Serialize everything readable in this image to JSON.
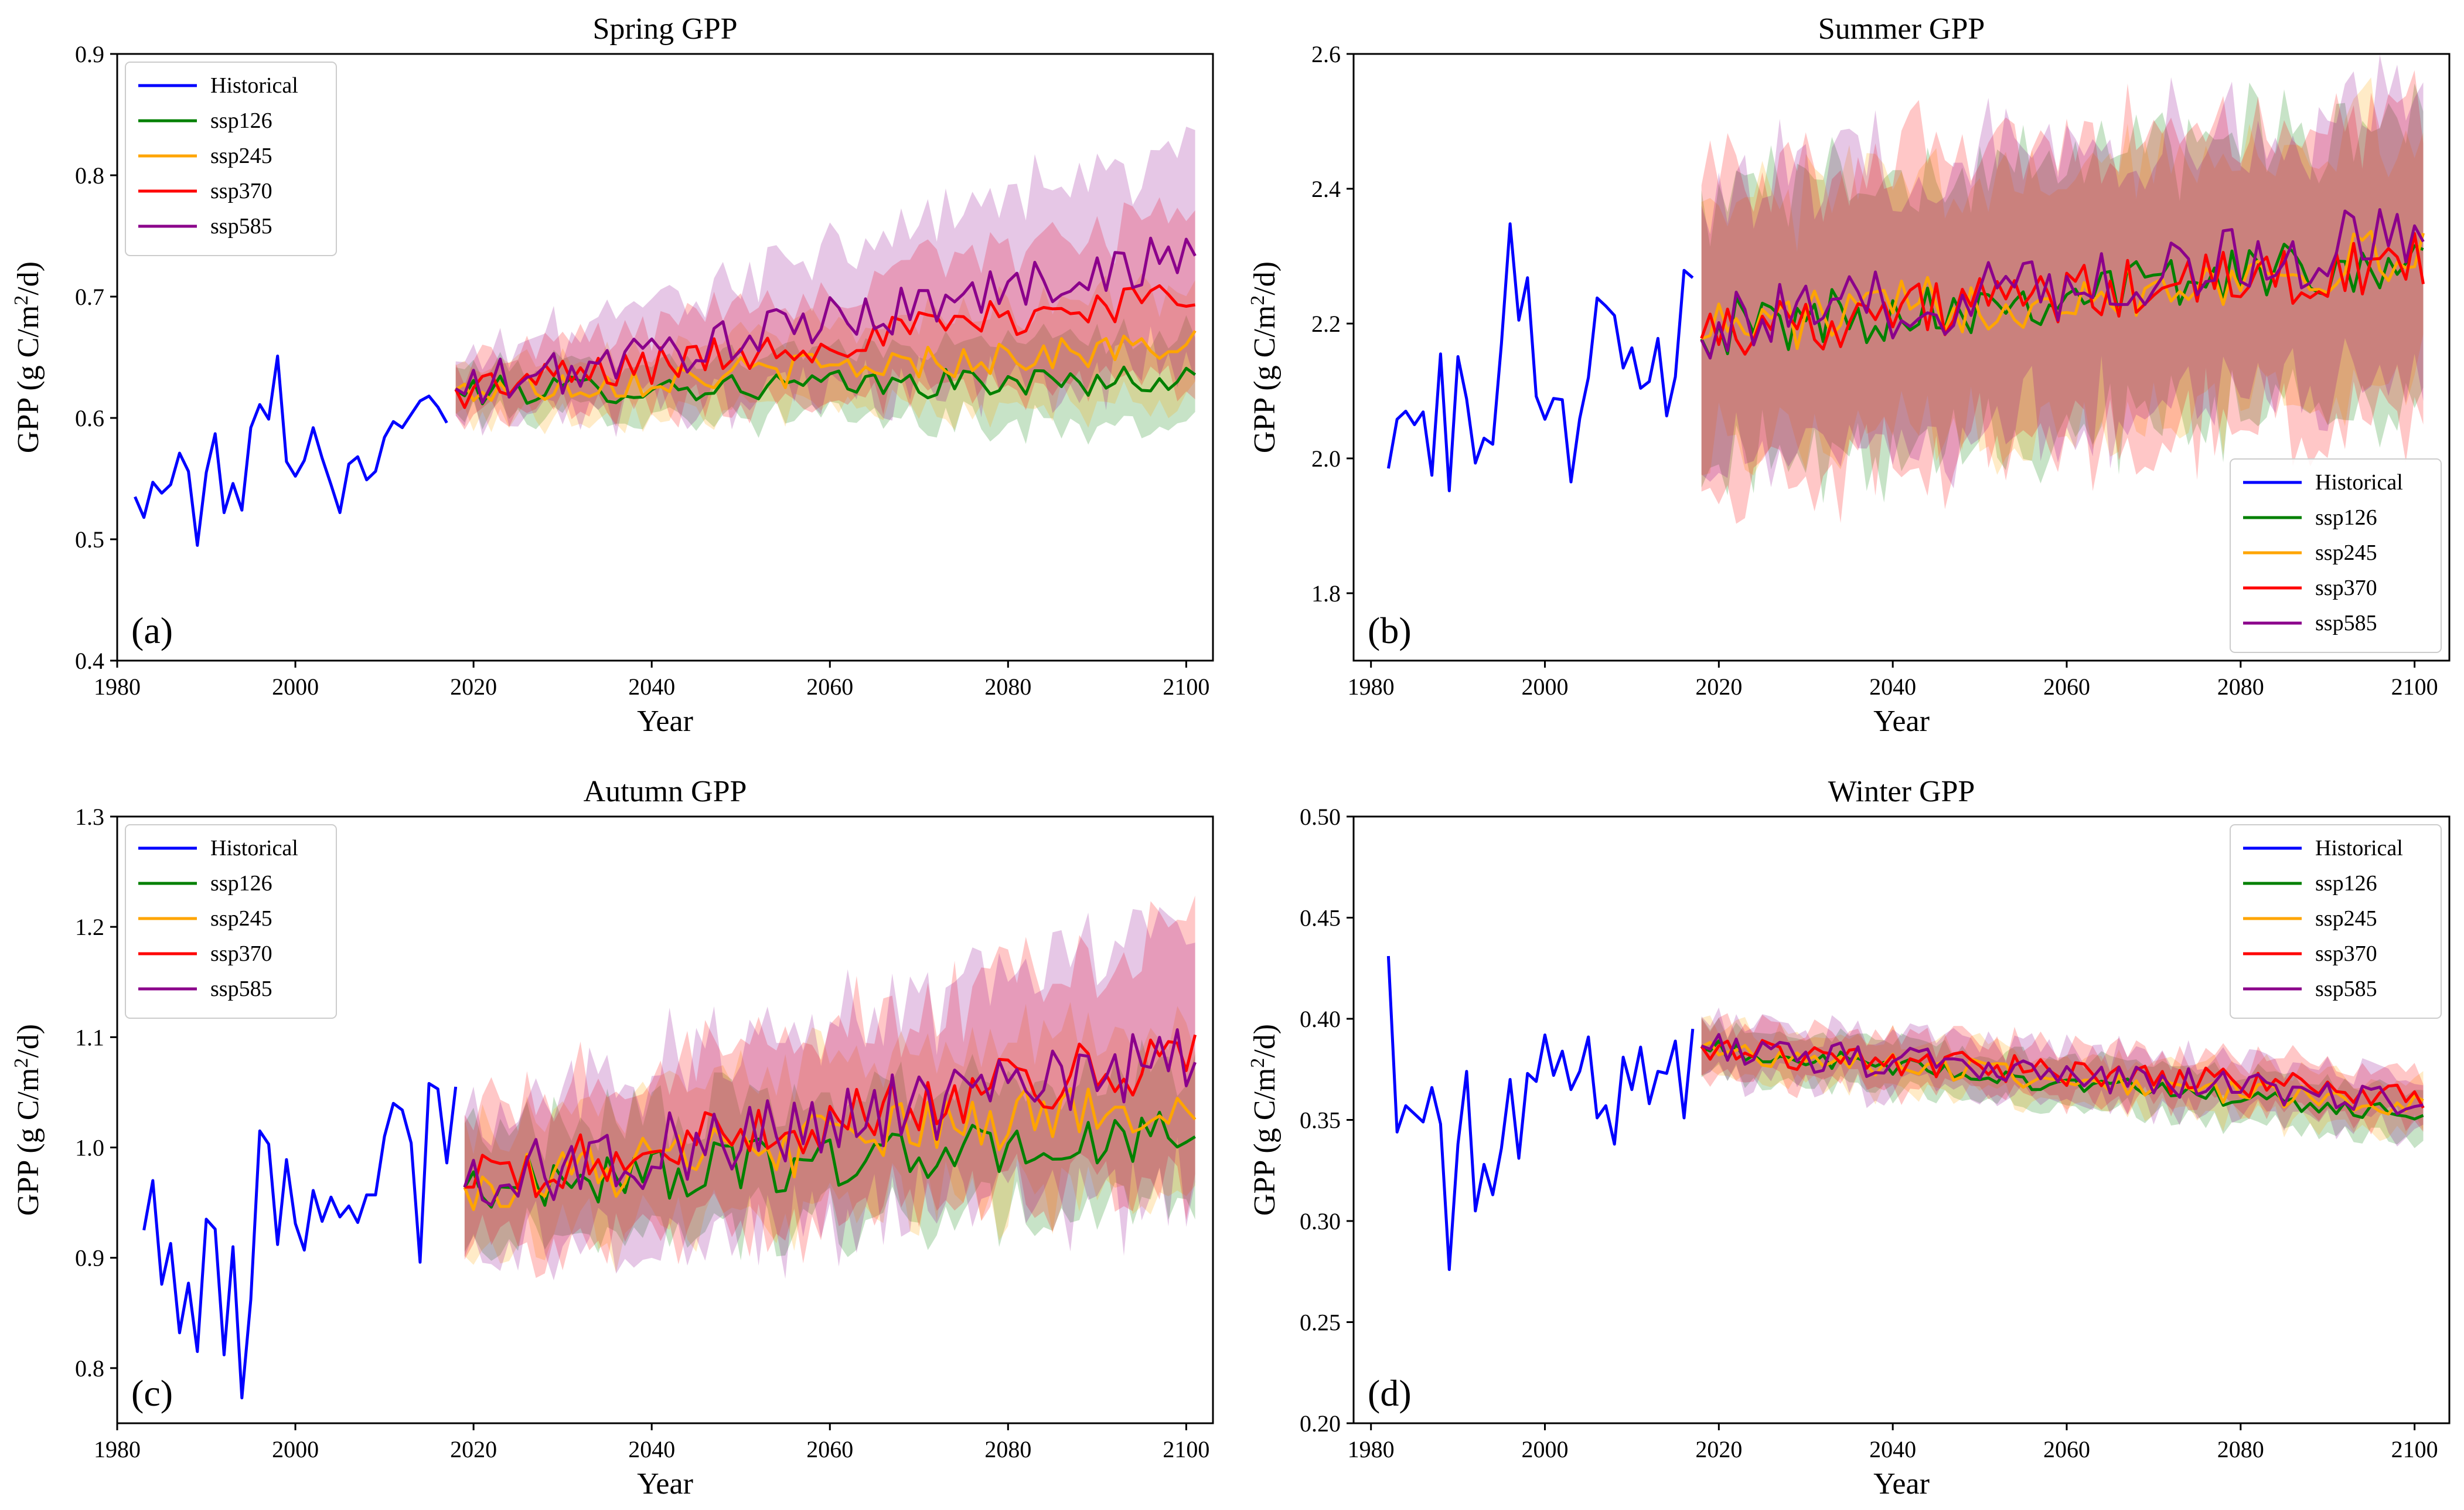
{
  "figure": {
    "series_names": [
      "Historical",
      "ssp126",
      "ssp245",
      "ssp370",
      "ssp585"
    ],
    "colors": {
      "Historical": "#0000ff",
      "ssp126": "#008000",
      "ssp245": "#ffa500",
      "ssp370": "#ff0000",
      "ssp585": "#8b008b"
    }
  },
  "chart_data": [
    {
      "type": "line",
      "title": "Spring GPP",
      "panel_label": "(a)",
      "xlabel": "Year",
      "ylabel": "GPP (g C/m2/d)",
      "xlim": [
        1980,
        2103
      ],
      "ylim": [
        0.4,
        0.9
      ],
      "xticks": [
        1980,
        2000,
        2020,
        2040,
        2060,
        2080,
        2100
      ],
      "yticks": [
        0.4,
        0.5,
        0.6,
        0.7,
        0.8,
        0.9
      ],
      "ytick_labels": [
        "0.4",
        "0.5",
        "0.6",
        "0.7",
        "0.8",
        "0.9"
      ],
      "legend_position": "upper-left",
      "historical": {
        "x_start": 1982,
        "values": [
          0.535,
          0.518,
          0.547,
          0.538,
          0.545,
          0.571,
          0.556,
          0.495,
          0.555,
          0.587,
          0.522,
          0.546,
          0.524,
          0.592,
          0.611,
          0.599,
          0.651,
          0.564,
          0.552,
          0.565,
          0.592,
          0.567,
          0.545,
          0.522,
          0.562,
          0.568,
          0.549,
          0.556,
          0.584,
          0.597,
          0.592,
          0.603,
          0.614,
          0.618,
          0.609,
          0.596
        ]
      },
      "scenarios": [
        {
          "name": "ssp126",
          "trend_end": 0.632,
          "noise": 0.012,
          "band": 0.018,
          "band_growth": 0.02
        },
        {
          "name": "ssp245",
          "trend_end": 0.66,
          "noise": 0.014,
          "band": 0.02,
          "band_growth": 0.025
        },
        {
          "name": "ssp370",
          "trend_end": 0.703,
          "noise": 0.016,
          "band": 0.022,
          "band_growth": 0.045
        },
        {
          "name": "ssp585",
          "trend_end": 0.735,
          "noise": 0.02,
          "band": 0.024,
          "band_growth": 0.07
        }
      ],
      "scenario_start": {
        "year": 2018,
        "value": 0.622
      },
      "scenario_end_year": 2101
    },
    {
      "type": "line",
      "title": "Summer GPP",
      "panel_label": "(b)",
      "xlabel": "Year",
      "ylabel": "GPP (g C/m2/d)",
      "xlim": [
        1978,
        2104
      ],
      "ylim": [
        1.7,
        2.6
      ],
      "xticks": [
        1980,
        2000,
        2020,
        2040,
        2060,
        2080,
        2100
      ],
      "yticks": [
        1.8,
        2.0,
        2.2,
        2.4,
        2.6
      ],
      "ytick_labels": [
        "1.8",
        "2.0",
        "2.2",
        "2.4",
        "2.6"
      ],
      "legend_position": "lower-right",
      "historical": {
        "x_start": 1982,
        "values": [
          1.985,
          2.058,
          2.07,
          2.05,
          2.069,
          1.975,
          2.155,
          1.952,
          2.151,
          2.088,
          1.993,
          2.03,
          2.021,
          2.17,
          2.348,
          2.205,
          2.268,
          2.092,
          2.058,
          2.089,
          2.087,
          1.965,
          2.059,
          2.12,
          2.238,
          2.226,
          2.212,
          2.134,
          2.164,
          2.104,
          2.114,
          2.178,
          2.063,
          2.121,
          2.279,
          2.268
        ]
      },
      "scenarios": [
        {
          "name": "ssp126",
          "trend_end": 2.3,
          "noise": 0.045,
          "band": 0.2,
          "band_growth": 0.0
        },
        {
          "name": "ssp245",
          "trend_end": 2.3,
          "noise": 0.045,
          "band": 0.19,
          "band_growth": 0.0
        },
        {
          "name": "ssp370",
          "trend_end": 2.29,
          "noise": 0.045,
          "band": 0.22,
          "band_growth": 0.0
        },
        {
          "name": "ssp585",
          "trend_end": 2.33,
          "noise": 0.055,
          "band": 0.2,
          "band_growth": 0.0
        }
      ],
      "scenario_start": {
        "year": 2018,
        "value": 2.19
      },
      "scenario_end_year": 2101
    },
    {
      "type": "line",
      "title": "Autumn GPP",
      "panel_label": "(c)",
      "xlabel": "Year",
      "ylabel": "GPP (g C/m2/d)",
      "xlim": [
        1980,
        2103
      ],
      "ylim": [
        0.75,
        1.3
      ],
      "xticks": [
        1980,
        2000,
        2020,
        2040,
        2060,
        2080,
        2100
      ],
      "yticks": [
        0.8,
        0.9,
        1.0,
        1.1,
        1.2,
        1.3
      ],
      "ytick_labels": [
        "0.8",
        "0.9",
        "1.0",
        "1.1",
        "1.2",
        "1.3"
      ],
      "legend_position": "upper-left",
      "historical": {
        "x_start": 1983,
        "values": [
          0.925,
          0.97,
          0.876,
          0.913,
          0.832,
          0.877,
          0.815,
          0.935,
          0.926,
          0.812,
          0.91,
          0.773,
          0.862,
          1.015,
          1.003,
          0.912,
          0.989,
          0.931,
          0.907,
          0.961,
          0.933,
          0.955,
          0.937,
          0.947,
          0.932,
          0.957,
          0.957,
          1.01,
          1.04,
          1.034,
          1.004,
          0.896,
          1.058,
          1.053,
          0.986,
          1.055
        ]
      },
      "scenarios": [
        {
          "name": "ssp126",
          "trend_end": 1.01,
          "noise": 0.025,
          "band": 0.05,
          "band_growth": 0.01
        },
        {
          "name": "ssp245",
          "trend_end": 1.045,
          "noise": 0.028,
          "band": 0.055,
          "band_growth": 0.02
        },
        {
          "name": "ssp370",
          "trend_end": 1.085,
          "noise": 0.028,
          "band": 0.06,
          "band_growth": 0.05
        },
        {
          "name": "ssp585",
          "trend_end": 1.08,
          "noise": 0.035,
          "band": 0.06,
          "band_growth": 0.06
        }
      ],
      "scenario_start": {
        "year": 2019,
        "value": 0.965
      },
      "scenario_end_year": 2101
    },
    {
      "type": "line",
      "title": "Winter GPP",
      "panel_label": "(d)",
      "xlabel": "Year",
      "ylabel": "GPP (g C/m2/d)",
      "xlim": [
        1978,
        2104
      ],
      "ylim": [
        0.2,
        0.5
      ],
      "xticks": [
        1980,
        2000,
        2020,
        2040,
        2060,
        2080,
        2100
      ],
      "yticks": [
        0.2,
        0.25,
        0.3,
        0.35,
        0.4,
        0.45,
        0.5
      ],
      "ytick_labels": [
        "0.20",
        "0.25",
        "0.30",
        "0.35",
        "0.40",
        "0.45",
        "0.50"
      ],
      "legend_position": "upper-right",
      "historical": {
        "x_start": 1982,
        "values": [
          0.431,
          0.344,
          0.357,
          0.353,
          0.349,
          0.366,
          0.348,
          0.276,
          0.338,
          0.374,
          0.305,
          0.328,
          0.313,
          0.336,
          0.37,
          0.331,
          0.373,
          0.369,
          0.392,
          0.372,
          0.384,
          0.365,
          0.374,
          0.391,
          0.351,
          0.357,
          0.338,
          0.381,
          0.365,
          0.386,
          0.358,
          0.374,
          0.373,
          0.389,
          0.351,
          0.395
        ]
      },
      "scenarios": [
        {
          "name": "ssp126",
          "trend_end": 0.352,
          "noise": 0.005,
          "band": 0.012,
          "band_growth": 0.0
        },
        {
          "name": "ssp245",
          "trend_end": 0.356,
          "noise": 0.006,
          "band": 0.012,
          "band_growth": 0.0
        },
        {
          "name": "ssp370",
          "trend_end": 0.362,
          "noise": 0.007,
          "band": 0.012,
          "band_growth": 0.0
        },
        {
          "name": "ssp585",
          "trend_end": 0.36,
          "noise": 0.008,
          "band": 0.013,
          "band_growth": 0.0
        }
      ],
      "scenario_start": {
        "year": 2018,
        "value": 0.385
      },
      "scenario_end_year": 2101
    }
  ]
}
